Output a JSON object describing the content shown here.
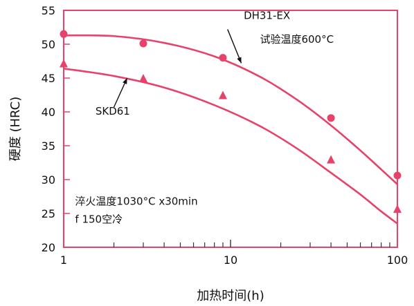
{
  "chart_data": {
    "type": "scatter",
    "title": "",
    "xlabel": "加热时间(h)",
    "ylabel": "硬度 (HRC)",
    "x_scale": "log",
    "xlim": [
      1,
      100
    ],
    "ylim": [
      20,
      55
    ],
    "x_ticks": [
      1,
      10,
      100
    ],
    "y_ticks": [
      20,
      25,
      30,
      35,
      40,
      45,
      50,
      55
    ],
    "x_tick_labels": [
      "1",
      "10",
      "100"
    ],
    "y_tick_labels": [
      "20",
      "25",
      "30",
      "35",
      "40",
      "45",
      "50",
      "55"
    ],
    "grid": false,
    "series": [
      {
        "name": "DH31-EX",
        "marker": "circle",
        "color": "#e8416a",
        "points": [
          [
            1,
            51.5
          ],
          [
            3,
            50.1
          ],
          [
            9,
            48.0
          ],
          [
            40,
            39.1
          ],
          [
            100,
            30.6
          ]
        ],
        "curve": [
          [
            1,
            51.3
          ],
          [
            2,
            51.2
          ],
          [
            4,
            50.2
          ],
          [
            8,
            48.2
          ],
          [
            15,
            45.2
          ],
          [
            25,
            41.8
          ],
          [
            40,
            38.0
          ],
          [
            60,
            34.3
          ],
          [
            80,
            31.5
          ],
          [
            100,
            29.3
          ]
        ]
      },
      {
        "name": "SKD61",
        "marker": "triangle",
        "color": "#e8416a",
        "points": [
          [
            1,
            47.2
          ],
          [
            3,
            45.0
          ],
          [
            9,
            42.5
          ],
          [
            40,
            33.0
          ],
          [
            100,
            25.7
          ]
        ],
        "curve": [
          [
            1,
            46.4
          ],
          [
            2,
            45.3
          ],
          [
            4,
            43.6
          ],
          [
            8,
            41.0
          ],
          [
            15,
            37.9
          ],
          [
            25,
            34.6
          ],
          [
            40,
            31.0
          ],
          [
            60,
            27.8
          ],
          [
            80,
            25.3
          ],
          [
            100,
            23.5
          ]
        ]
      }
    ],
    "annotations": [
      {
        "text": "DH31-EX",
        "x": 12,
        "y": 53.7
      },
      {
        "text": "试验温度600°C",
        "x": 15,
        "y": 50.2
      },
      {
        "text": "SKD61",
        "x": 1.55,
        "y": 39.6
      },
      {
        "text": "淬火温度1030°C x30min",
        "x": 1.17,
        "y": 26.3
      },
      {
        "text": "f 150空冷",
        "x": 1.17,
        "y": 23.6
      }
    ],
    "arrows": [
      {
        "from": [
          9.6,
          52.2
        ],
        "to": [
          11.6,
          47.2
        ]
      },
      {
        "from": [
          2.0,
          40.7
        ],
        "to": [
          2.4,
          45.0
        ]
      }
    ],
    "colors": {
      "axis": "#e8416a",
      "series": "#e8416a",
      "text": "#111111"
    }
  }
}
